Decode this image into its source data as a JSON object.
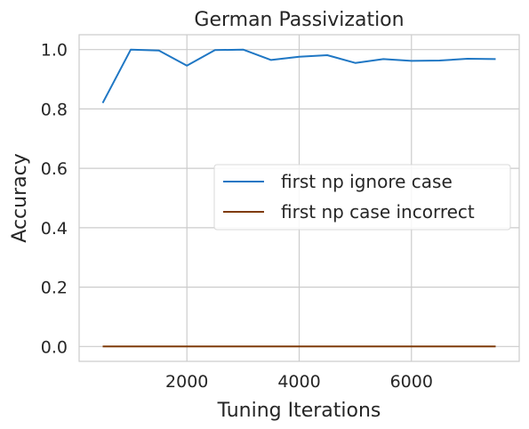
{
  "chart_data": {
    "type": "line",
    "title": "German Passivization",
    "xlabel": "Tuning Iterations",
    "ylabel": "Accuracy",
    "xlim": [
      80,
      7920
    ],
    "ylim": [
      -0.05,
      1.05
    ],
    "xticks": [
      2000,
      4000,
      6000
    ],
    "xtick_labels": [
      "2000",
      "4000",
      "6000"
    ],
    "yticks": [
      0.0,
      0.2,
      0.4,
      0.6,
      0.8,
      1.0
    ],
    "ytick_labels": [
      "0.0",
      "0.2",
      "0.4",
      "0.6",
      "0.8",
      "1.0"
    ],
    "grid": true,
    "legend_position": "center-right",
    "x": [
      500,
      1000,
      1500,
      2000,
      2500,
      3000,
      3500,
      4000,
      4500,
      5000,
      5500,
      6000,
      6500,
      7000,
      7500
    ],
    "series": [
      {
        "name": "first np ignore case",
        "color": "#1f77c4",
        "values": [
          0.82,
          1.0,
          0.997,
          0.946,
          0.998,
          1.0,
          0.965,
          0.976,
          0.981,
          0.955,
          0.968,
          0.962,
          0.963,
          0.969,
          0.968
        ]
      },
      {
        "name": "first np case incorrect",
        "color": "#7f3b08",
        "values": [
          0.0,
          0.0,
          0.0,
          0.0,
          0.0,
          0.0,
          0.0,
          0.0,
          0.0,
          0.0,
          0.0,
          0.0,
          0.0,
          0.0,
          0.0
        ]
      }
    ]
  }
}
